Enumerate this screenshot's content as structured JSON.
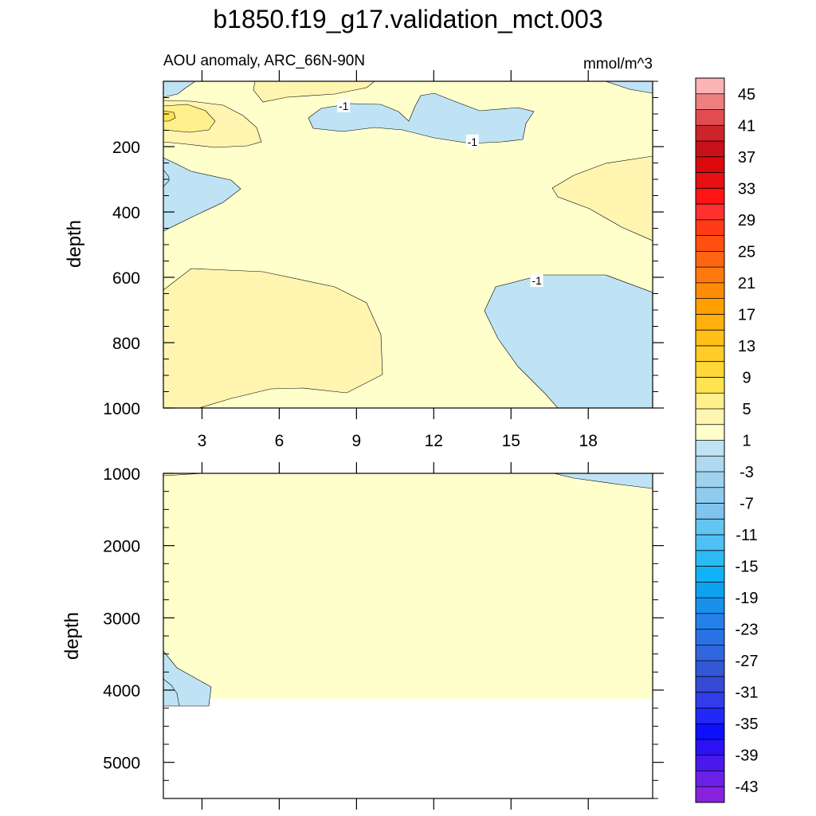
{
  "chart_data": {
    "type": "contour",
    "title": "b1850.f19_g17.validation_mct.003",
    "subtitle": "AOU anomaly, ARC_66N-90N",
    "units": "mmol/m^3",
    "xlabel": "",
    "x_ticks": [
      "3",
      "6",
      "9",
      "12",
      "15",
      "18"
    ],
    "xlim": [
      1.5,
      20.5
    ],
    "panels": [
      {
        "name": "upper",
        "ylabel": "depth",
        "ylim": [
          0,
          1000
        ],
        "y_ticks": [
          "200",
          "400",
          "600",
          "800",
          "1000"
        ],
        "contour_labels": [
          {
            "text": "-1",
            "x": 8.5,
            "depth": 75
          },
          {
            "text": "-1",
            "x": 13.5,
            "depth": 185
          },
          {
            "text": "-1",
            "x": 16.0,
            "depth": 610
          }
        ]
      },
      {
        "name": "lower",
        "ylabel": "depth",
        "ylim": [
          1000,
          5500
        ],
        "y_ticks": [
          "1000",
          "2000",
          "3000",
          "4000",
          "5000"
        ],
        "data_bottom_depth": 4120
      }
    ],
    "colorbar": {
      "labels": [
        "45",
        "41",
        "37",
        "33",
        "29",
        "25",
        "21",
        "17",
        "13",
        "9",
        "5",
        "1",
        "-3",
        "-7",
        "-11",
        "-15",
        "-19",
        "-23",
        "-27",
        "-31",
        "-35",
        "-39",
        "-43"
      ],
      "colors": [
        "#fbb3b5",
        "#ee7f81",
        "#e04c50",
        "#cc2428",
        "#c8101a",
        "#da0a0c",
        "#e81010",
        "#ff1414",
        "#ff3030",
        "#ff3a14",
        "#ff5010",
        "#ff6410",
        "#ff7a0a",
        "#ff8c06",
        "#ffa000",
        "#ffb00c",
        "#ffc018",
        "#ffcc28",
        "#ffd838",
        "#ffe450",
        "#fff08c",
        "#fff5b0",
        "#ffffcc",
        "#bfe3f4",
        "#aed9f0",
        "#9ed2ee",
        "#8ecbee",
        "#7ec4ee",
        "#62c5f2",
        "#4ec0f4",
        "#2cbaf4",
        "#10b2f5",
        "#0ca2f0",
        "#1890ee",
        "#2480ea",
        "#2872e6",
        "#3066e0",
        "#3258d8",
        "#364ad6",
        "#323cea",
        "#2228f8",
        "#0c10fc",
        "#2a12f4",
        "#4a18ec",
        "#6a20e6",
        "#8822e0"
      ]
    }
  }
}
